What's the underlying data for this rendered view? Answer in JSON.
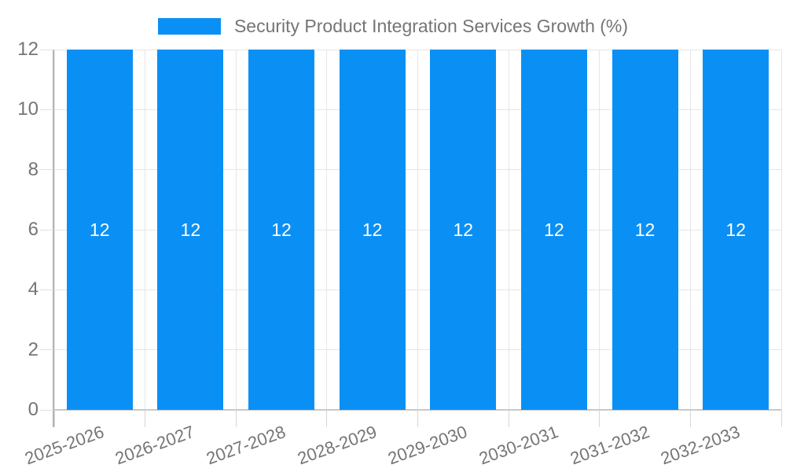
{
  "chart_data": {
    "type": "bar",
    "title": "Security Product Integration Services Growth (%)",
    "categories": [
      "2025-2026",
      "2026-2027",
      "2027-2028",
      "2028-2029",
      "2029-2030",
      "2030-2031",
      "2031-2032",
      "2032-2033"
    ],
    "values": [
      12,
      12,
      12,
      12,
      12,
      12,
      12,
      12
    ],
    "bar_labels": [
      "12",
      "12",
      "12",
      "12",
      "12",
      "12",
      "12",
      "12"
    ],
    "yticks": [
      0,
      2,
      4,
      6,
      8,
      10,
      12
    ],
    "ylim": [
      0,
      12
    ],
    "xlabel": "",
    "ylabel": "",
    "legend_position": "top-center",
    "grid": "on",
    "x_label_rotation_deg": -20,
    "colors": {
      "bar": "#0a90f5",
      "bar_value_label": "#ffffff",
      "axis_text": "#757575",
      "legend_text": "#757575",
      "gridline": "#e6e6e6",
      "axis_line": "#b3b3b3",
      "baseline": "#c9c9c9",
      "background": "#ffffff"
    }
  }
}
